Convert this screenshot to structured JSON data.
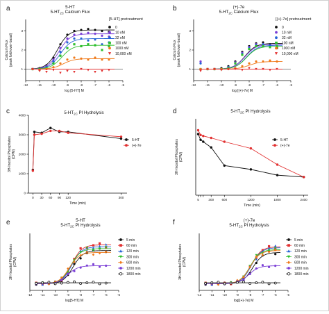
{
  "panels": [
    {
      "letter": "a",
      "title_lines": [
        {
          "main": "5-HT",
          "sub": "",
          "rest": ""
        },
        {
          "main": "5-HT",
          "sub": "2C",
          "rest": " Calcium Flux"
        }
      ],
      "legend_title": "[5-HT] pretreatment",
      "chart_data": {
        "type": "scatter",
        "xlabel": "log [5-HT] M",
        "ylabel_lines": [
          "Calcium Flux",
          "(peak fold-over-basal)"
        ],
        "xlim": [
          -12,
          -5
        ],
        "ylim": [
          0.4,
          3.6
        ],
        "x_ticks": [
          -12,
          -11,
          -10,
          -9,
          -8,
          -7,
          -6,
          -5
        ],
        "y_ticks": [
          1,
          2,
          3
        ],
        "baseline": 1,
        "series": [
          {
            "name": "0",
            "color": "#111111",
            "marker": "circle",
            "top": 3.05,
            "ec50": -9.7,
            "x": [
              -11.5,
              -11,
              -10.5,
              -10,
              -9.5,
              -9,
              -8.5,
              -8,
              -7.5,
              -7,
              -6.5,
              -6
            ],
            "y": [
              1.0,
              1.05,
              1.2,
              1.6,
              2.3,
              2.8,
              3.0,
              3.05,
              3.1,
              3.05,
              3.0,
              2.95
            ]
          },
          {
            "name": "10 nM",
            "color": "#7b3fd6",
            "marker": "circle",
            "top": 2.85,
            "ec50": -9.6,
            "x": [
              -11.5,
              -11,
              -10.5,
              -10,
              -9.5,
              -9,
              -8.5,
              -8,
              -7.5,
              -7,
              -6.5,
              -6
            ],
            "y": [
              1.0,
              1.02,
              1.15,
              1.5,
              2.1,
              2.6,
              2.8,
              2.85,
              2.9,
              2.85,
              2.75,
              2.7
            ]
          },
          {
            "name": "32 nM",
            "color": "#2563d6",
            "marker": "circle",
            "top": 2.6,
            "ec50": -9.5,
            "x": [
              -11.5,
              -11,
              -10.5,
              -10,
              -9.5,
              -9,
              -8.5,
              -8,
              -7.5,
              -7,
              -6.5,
              -6
            ],
            "y": [
              1.0,
              1.0,
              1.1,
              1.4,
              1.9,
              2.4,
              2.6,
              2.6,
              2.5,
              2.55,
              2.3,
              2.4
            ]
          },
          {
            "name": "100 nM",
            "color": "#2fbf2f",
            "marker": "square",
            "top": 2.25,
            "ec50": -9.4,
            "x": [
              -11.5,
              -11,
              -10.5,
              -10,
              -9.5,
              -9,
              -8.5,
              -8,
              -7.5,
              -7,
              -6.5,
              -6
            ],
            "y": [
              1.0,
              1.0,
              1.05,
              1.3,
              1.7,
              2.1,
              2.3,
              2.2,
              2.3,
              2.25,
              2.0,
              2.2
            ]
          },
          {
            "name": "1000 nM",
            "color": "#f07a1a",
            "marker": "circle",
            "top": 1.55,
            "ec50": -9.3,
            "x": [
              -11.5,
              -11,
              -10.5,
              -10,
              -9.5,
              -9,
              -8.5,
              -8,
              -7.5,
              -7,
              -6.5,
              -6
            ],
            "y": [
              1.0,
              0.95,
              1.0,
              1.1,
              1.3,
              1.5,
              1.6,
              1.55,
              1.5,
              1.6,
              1.5,
              1.5
            ]
          },
          {
            "name": "10,000 nM",
            "color": "#e23030",
            "marker": "triangle-down",
            "top": 1.0,
            "ec50": -9.0,
            "x": [
              -11.5,
              -11,
              -10.5,
              -10,
              -9.5,
              -9,
              -8.5,
              -8,
              -7.5,
              -7,
              -6.5,
              -6
            ],
            "y": [
              1.0,
              0.9,
              0.85,
              0.95,
              0.8,
              0.9,
              0.85,
              1.0,
              0.95,
              0.85,
              0.9,
              0.95
            ]
          }
        ]
      }
    },
    {
      "letter": "b",
      "title_lines": [
        {
          "main": "(+)-7e",
          "sub": "",
          "rest": ""
        },
        {
          "main": "5-HT",
          "sub": "2C",
          "rest": " Calcium Flux"
        }
      ],
      "legend_title": "[(+)-7e] pretreatment",
      "chart_data": {
        "type": "scatter",
        "xlabel": "log [(+)-7e] M",
        "ylabel_lines": [
          "Calcium Flux",
          "(peak fold-over-basal)"
        ],
        "xlim": [
          -12,
          -5
        ],
        "ylim": [
          0.4,
          3.6
        ],
        "x_ticks": [
          -12,
          -11,
          -10,
          -9,
          -8,
          -7,
          -6,
          -5
        ],
        "y_ticks": [
          1,
          2,
          3
        ],
        "baseline": 1,
        "series": [
          {
            "name": "0",
            "color": "#111111",
            "marker": "circle",
            "top": 2.35,
            "ec50": -8.3,
            "x": [
              -11.5,
              -11,
              -10.5,
              -10,
              -9.5,
              -9,
              -8.5,
              -8,
              -7.5,
              -7,
              -6.5,
              -6
            ],
            "y": [
              1.0,
              1.0,
              1.0,
              1.05,
              1.15,
              1.4,
              1.9,
              2.2,
              2.35,
              2.4,
              2.3,
              2.1
            ]
          },
          {
            "name": "10 nM",
            "color": "#7b3fd6",
            "marker": "circle",
            "top": 2.3,
            "ec50": -8.3,
            "x": [
              -11.5,
              -11,
              -10.5,
              -10,
              -9.5,
              -9,
              -8.5,
              -8,
              -7.5,
              -7,
              -6.5,
              -6
            ],
            "y": [
              1.4,
              1.0,
              1.0,
              1.0,
              1.1,
              1.35,
              1.85,
              2.15,
              2.3,
              2.3,
              2.25,
              2.2
            ]
          },
          {
            "name": "32 nM",
            "color": "#2563d6",
            "marker": "circle",
            "top": 2.25,
            "ec50": -8.2,
            "x": [
              -11.5,
              -11,
              -10.5,
              -10,
              -9.5,
              -9,
              -8.5,
              -8,
              -7.5,
              -7,
              -6.5,
              -6
            ],
            "y": [
              1.3,
              1.0,
              1.0,
              1.0,
              1.1,
              1.3,
              1.8,
              2.1,
              2.25,
              2.3,
              2.25,
              2.2
            ]
          },
          {
            "name": "100 nM",
            "color": "#2fbf2f",
            "marker": "square",
            "top": 2.2,
            "ec50": -8.2,
            "x": [
              -11.5,
              -11,
              -10.5,
              -10,
              -9.5,
              -9,
              -8.5,
              -8,
              -7.5,
              -7,
              -6.5,
              -6
            ],
            "y": [
              1.0,
              1.0,
              1.0,
              1.0,
              1.05,
              1.3,
              1.75,
              2.05,
              2.2,
              2.2,
              2.15,
              2.2
            ]
          },
          {
            "name": "1000 nM",
            "color": "#f07a1a",
            "marker": "circle",
            "top": 1.4,
            "ec50": -8.0,
            "x": [
              -11.5,
              -11,
              -10.5,
              -10,
              -9.5,
              -9,
              -8.5,
              -8,
              -7.5,
              -7,
              -6.5,
              -6
            ],
            "y": [
              1.0,
              1.0,
              1.0,
              1.0,
              1.0,
              1.05,
              1.15,
              1.3,
              1.4,
              1.4,
              1.45,
              1.4
            ]
          },
          {
            "name": "10,000 nM",
            "color": "#e23030",
            "marker": "triangle-down",
            "top": 1.0,
            "ec50": -8.0,
            "x": [
              -11.5,
              -11,
              -10.5,
              -10,
              -9.5,
              -9,
              -8.5,
              -8,
              -7.5,
              -7,
              -6.5,
              -6
            ],
            "y": [
              0.9,
              1.0,
              1.0,
              0.95,
              1.0,
              1.0,
              0.95,
              1.05,
              1.0,
              1.0,
              0.95,
              1.0
            ]
          }
        ]
      }
    },
    {
      "letter": "c",
      "title_lines": [
        {
          "main": "5-HT",
          "sub": "2C",
          "rest": " PI Hydrolysis"
        }
      ],
      "legend_title": "",
      "chart_data": {
        "type": "line",
        "xlabel": "Time (min)",
        "ylabel_lines": [
          "3H-Inositol Phosphates",
          "(CPM)"
        ],
        "xlim": [
          -15,
          320
        ],
        "ylim": [
          0,
          4000
        ],
        "x_ticks": [
          0,
          30,
          60,
          90,
          120,
          300
        ],
        "y_ticks": [
          0,
          1000,
          2000,
          3000,
          4000
        ],
        "series": [
          {
            "name": "5-HT",
            "color": "#111111",
            "marker": "circle",
            "x": [
              0,
              5,
              30,
              60,
              90,
              120,
              300
            ],
            "y": [
              1200,
              3150,
              3100,
              3350,
              3150,
              3150,
              2800
            ]
          },
          {
            "name": "(+)-7e",
            "color": "#e23030",
            "marker": "circle",
            "x": [
              0,
              5,
              30,
              60,
              90,
              120,
              300
            ],
            "y": [
              1150,
              3000,
              3050,
              3200,
              3200,
              3100,
              2900
            ]
          }
        ]
      }
    },
    {
      "letter": "d",
      "title_lines": [
        {
          "main": "5-HT",
          "sub": "2C",
          "rest": " PI Hydrolysis"
        }
      ],
      "legend_title": "",
      "chart_data": {
        "type": "line",
        "xlabel": "Time (min)",
        "ylabel_lines": [
          "3H-Inositol Phosphates",
          "(CPM)"
        ],
        "xlim": [
          -50,
          2500
        ],
        "ylim": [
          0,
          4000
        ],
        "x_ticks": [
          5,
          60,
          120,
          300,
          600,
          1200,
          1800,
          2400
        ],
        "x_tick_labels": [
          "5",
          "",
          "",
          "300",
          "600",
          "1200",
          "1800",
          "2400"
        ],
        "y_ticks": [],
        "series": [
          {
            "name": "5-HT",
            "color": "#111111",
            "marker": "circle",
            "x": [
              5,
              60,
              120,
              300,
              600,
              1200,
              1800,
              2400
            ],
            "y": [
              3200,
              2900,
              2800,
              2500,
              1550,
              1350,
              1050,
              950
            ]
          },
          {
            "name": "(+)-7e",
            "color": "#e23030",
            "marker": "circle",
            "x": [
              5,
              60,
              120,
              300,
              600,
              1200,
              1800,
              2400
            ],
            "y": [
              3400,
              3150,
              3100,
              3000,
              2800,
              2450,
              1600,
              950
            ]
          }
        ]
      }
    },
    {
      "letter": "e",
      "title_lines": [
        {
          "main": "5-HT",
          "sub": "",
          "rest": ""
        },
        {
          "main": "5-HT",
          "sub": "2C",
          "rest": " PI Hydrolysis"
        }
      ],
      "legend_title": "",
      "chart_data": {
        "type": "scatter",
        "xlabel": "log[5-HT] M",
        "ylabel_lines": [
          "3H-Inositol Phosphates",
          "(CPM)"
        ],
        "xlim": [
          -12,
          -5
        ],
        "ylim": [
          1000,
          4000
        ],
        "x_ticks": [
          -12,
          -11,
          -10,
          -9,
          -8,
          -7,
          -6,
          -5
        ],
        "y_ticks": [],
        "series": [
          {
            "name": "5 min",
            "color": "#111111",
            "marker": "circle",
            "bottom": 1350,
            "top": 3100,
            "ec50": -8.6
          },
          {
            "name": "60 min",
            "color": "#e23030",
            "marker": "square",
            "bottom": 1350,
            "top": 3400,
            "ec50": -8.7
          },
          {
            "name": "120 min",
            "color": "#2563d6",
            "marker": "triangle-up",
            "bottom": 1350,
            "top": 3300,
            "ec50": -8.7
          },
          {
            "name": "300 min",
            "color": "#2fbf2f",
            "marker": "triangle-down",
            "bottom": 1350,
            "top": 3200,
            "ec50": -8.8
          },
          {
            "name": "600 min",
            "color": "#f07a1a",
            "marker": "diamond",
            "bottom": 1350,
            "top": 3000,
            "ec50": -8.9
          },
          {
            "name": "1200 min",
            "color": "#7b3fd6",
            "marker": "circle",
            "bottom": 1350,
            "top": 2300,
            "ec50": -9.0
          },
          {
            "name": "1800 min",
            "color": "#111111",
            "marker": "circle-open",
            "bottom": 1400,
            "top": 1400,
            "ec50": -9.0
          }
        ]
      }
    },
    {
      "letter": "f",
      "title_lines": [
        {
          "main": "(+)-7e",
          "sub": "",
          "rest": ""
        },
        {
          "main": "5-HT",
          "sub": "2C",
          "rest": " PI Hydrolysis"
        }
      ],
      "legend_title": "",
      "chart_data": {
        "type": "scatter",
        "xlabel": "log[(+)-7e] M",
        "ylabel_lines": [
          "3H-Inositol Phosphates",
          "(CPM)"
        ],
        "xlim": [
          -12,
          -5
        ],
        "ylim": [
          1000,
          4000
        ],
        "x_ticks": [
          -12,
          -11,
          -10,
          -9,
          -8,
          -7,
          -6,
          -5
        ],
        "y_ticks": [],
        "series": [
          {
            "name": "5 min",
            "color": "#111111",
            "marker": "circle",
            "bottom": 1350,
            "top": 3000,
            "ec50": -7.8
          },
          {
            "name": "60 min",
            "color": "#e23030",
            "marker": "square",
            "bottom": 1350,
            "top": 3300,
            "ec50": -7.9
          },
          {
            "name": "120 min",
            "color": "#2563d6",
            "marker": "triangle-up",
            "bottom": 1350,
            "top": 3250,
            "ec50": -7.9
          },
          {
            "name": "300 min",
            "color": "#2fbf2f",
            "marker": "triangle-down",
            "bottom": 1350,
            "top": 3150,
            "ec50": -8.0
          },
          {
            "name": "600 min",
            "color": "#f07a1a",
            "marker": "diamond",
            "bottom": 1350,
            "top": 3100,
            "ec50": -8.0
          },
          {
            "name": "1200 min",
            "color": "#7b3fd6",
            "marker": "circle",
            "bottom": 1350,
            "top": 2300,
            "ec50": -8.1
          },
          {
            "name": "1800 min",
            "color": "#111111",
            "marker": "circle-open",
            "bottom": 1400,
            "top": 1400,
            "ec50": -8.1
          }
        ]
      }
    }
  ]
}
